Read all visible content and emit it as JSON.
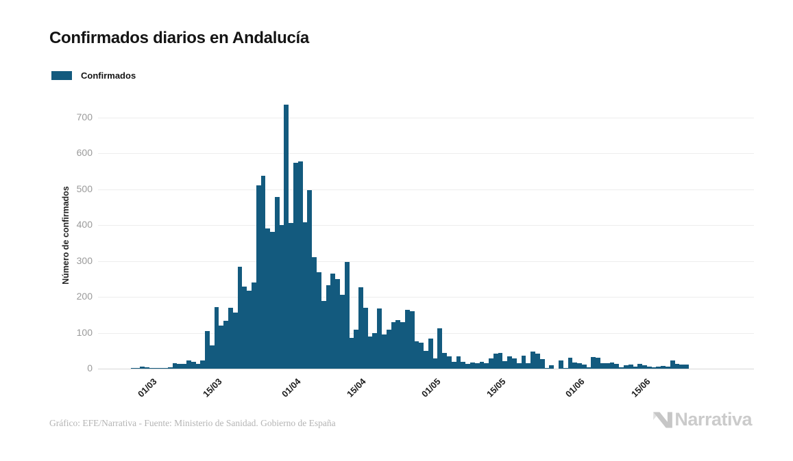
{
  "title": "Confirmados diarios en Andalucía",
  "legend": {
    "label": "Confirmados",
    "color": "#135A7E"
  },
  "chart_data": {
    "type": "bar",
    "title": "Confirmados diarios en Andalucía",
    "series_name": "Confirmados",
    "ylabel": "Número de confirmados",
    "xlabel": "",
    "y_ticks": [
      0,
      100,
      200,
      300,
      400,
      500,
      600,
      700
    ],
    "ylim": [
      0,
      745
    ],
    "grid": "horizontal",
    "legend_position": "top-left",
    "bar_color": "#135A7E",
    "x_tick_labels": [
      "01/03",
      "15/03",
      "01/04",
      "15/04",
      "01/05",
      "15/05",
      "01/06",
      "15/06"
    ],
    "x_tick_slots": [
      11,
      25,
      42,
      56,
      72,
      86,
      103,
      117
    ],
    "total_slots": 141,
    "start_offset": 7,
    "values": [
      1,
      2,
      6,
      4,
      2,
      1,
      1,
      2,
      3,
      16,
      13,
      13,
      22,
      19,
      13,
      22,
      105,
      65,
      172,
      121,
      134,
      170,
      157,
      283,
      229,
      217,
      240,
      510,
      537,
      390,
      382,
      478,
      400,
      735,
      405,
      573,
      578,
      407,
      498,
      310,
      268,
      189,
      233,
      265,
      250,
      205,
      298,
      85,
      108,
      227,
      169,
      90,
      100,
      167,
      96,
      108,
      130,
      135,
      130,
      164,
      160,
      76,
      73,
      49,
      83,
      28,
      113,
      44,
      35,
      20,
      35,
      19,
      13,
      17,
      15,
      19,
      16,
      29,
      41,
      43,
      21,
      34,
      29,
      16,
      37,
      16,
      48,
      41,
      27,
      1,
      10,
      0,
      22,
      1,
      30,
      17,
      16,
      11,
      3,
      32,
      30,
      16,
      16,
      17,
      13,
      3,
      10,
      11,
      6,
      13,
      10,
      5,
      3,
      5,
      8,
      6,
      22,
      14,
      11,
      11
    ]
  },
  "footer": {
    "credit": "Gráfico: EFE/Narrativa - Fuente: Ministerio de Sanidad. Gobierno de España"
  },
  "logo": {
    "text": "Narrativa"
  }
}
